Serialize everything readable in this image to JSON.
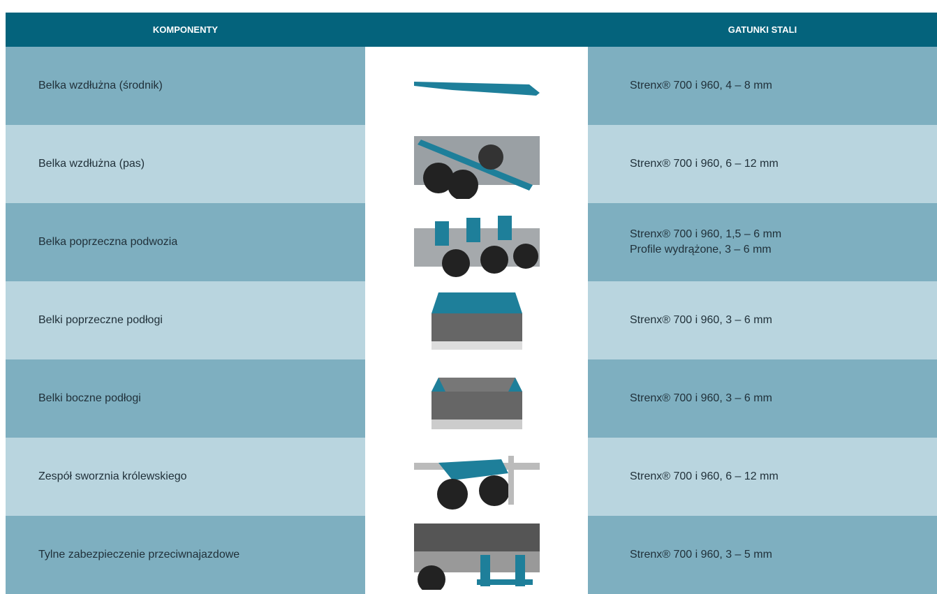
{
  "header": {
    "components": "KOMPONENTY",
    "steel": "GATUNKI STALI"
  },
  "rows": [
    {
      "component": "Belka wzdłużna (środnik)",
      "steel": [
        "Strenx® 700 i 960, 4 – 8 mm"
      ]
    },
    {
      "component": "Belka wzdłużna (pas)",
      "steel": [
        "Strenx® 700 i 960, 6 – 12 mm"
      ]
    },
    {
      "component": "Belka poprzeczna podwozia",
      "steel": [
        "Strenx® 700 i 960, 1,5 – 6 mm",
        "Profile wydrążone, 3 – 6 mm"
      ]
    },
    {
      "component": "Belki poprzeczne podłogi",
      "steel": [
        "Strenx® 700 i 960, 3 – 6 mm"
      ]
    },
    {
      "component": "Belki boczne podłogi",
      "steel": [
        "Strenx® 700 i 960, 3 – 6 mm"
      ]
    },
    {
      "component": "Zespół sworznia królewskiego",
      "steel": [
        "Strenx® 700 i 960, 6 – 12 mm"
      ]
    },
    {
      "component": "Tylne zabezpieczenie przeciwnajazdowe",
      "steel": [
        "Strenx® 700 i 960, 3 – 5 mm"
      ]
    }
  ]
}
